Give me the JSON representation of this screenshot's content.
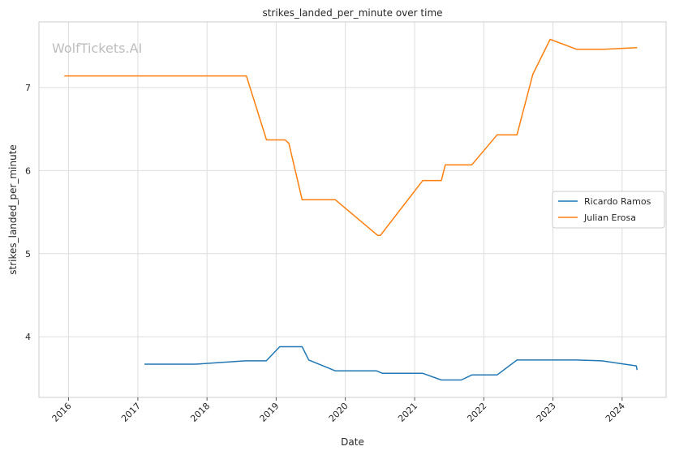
{
  "chart_data": {
    "type": "line",
    "title": "strikes_landed_per_minute over time",
    "xlabel": "Date",
    "ylabel": "strikes_landed_per_minute",
    "watermark": "WolfTickets.AI",
    "xlim": [
      "2015-07-29",
      "2024-08-20"
    ],
    "ylim": [
      3.27,
      7.79
    ],
    "x_ticks": [
      {
        "label": "2016",
        "date": "2016-01-01"
      },
      {
        "label": "2017",
        "date": "2017-01-01"
      },
      {
        "label": "2018",
        "date": "2018-01-01"
      },
      {
        "label": "2019",
        "date": "2019-01-01"
      },
      {
        "label": "2020",
        "date": "2020-01-01"
      },
      {
        "label": "2021",
        "date": "2021-01-01"
      },
      {
        "label": "2022",
        "date": "2022-01-01"
      },
      {
        "label": "2023",
        "date": "2023-01-01"
      },
      {
        "label": "2024",
        "date": "2024-01-01"
      }
    ],
    "y_ticks": [
      4,
      5,
      6,
      7
    ],
    "grid": true,
    "legend": "center-right",
    "series": [
      {
        "name": "Ricardo Ramos",
        "color": "#1f77b4",
        "points": [
          [
            "2017-02-05",
            3.67
          ],
          [
            "2017-11-02",
            3.67
          ],
          [
            "2018-07-22",
            3.71
          ],
          [
            "2018-11-10",
            3.71
          ],
          [
            "2019-01-20",
            3.88
          ],
          [
            "2019-05-18",
            3.88
          ],
          [
            "2019-06-22",
            3.72
          ],
          [
            "2019-11-09",
            3.59
          ],
          [
            "2020-06-13",
            3.59
          ],
          [
            "2020-07-15",
            3.56
          ],
          [
            "2021-02-13",
            3.56
          ],
          [
            "2021-05-22",
            3.48
          ],
          [
            "2021-09-04",
            3.48
          ],
          [
            "2021-10-30",
            3.54
          ],
          [
            "2022-03-12",
            3.54
          ],
          [
            "2022-06-25",
            3.72
          ],
          [
            "2023-05-06",
            3.72
          ],
          [
            "2023-09-16",
            3.71
          ],
          [
            "2024-03-16",
            3.65
          ],
          [
            "2024-03-20",
            3.6
          ]
        ]
      },
      {
        "name": "Julian Erosa",
        "color": "#ff7f0e",
        "points": [
          [
            "2015-12-10",
            7.14
          ],
          [
            "2018-07-28",
            7.14
          ],
          [
            "2018-11-11",
            6.37
          ],
          [
            "2019-02-17",
            6.37
          ],
          [
            "2019-03-09",
            6.33
          ],
          [
            "2019-05-18",
            5.65
          ],
          [
            "2019-11-09",
            5.65
          ],
          [
            "2020-06-20",
            5.22
          ],
          [
            "2020-07-04",
            5.22
          ],
          [
            "2021-02-13",
            5.88
          ],
          [
            "2021-05-22",
            5.88
          ],
          [
            "2021-06-12",
            6.07
          ],
          [
            "2021-10-30",
            6.07
          ],
          [
            "2022-03-12",
            6.43
          ],
          [
            "2022-06-25",
            6.43
          ],
          [
            "2022-09-17",
            7.16
          ],
          [
            "2022-12-17",
            7.58
          ],
          [
            "2023-05-06",
            7.46
          ],
          [
            "2023-09-23",
            7.46
          ],
          [
            "2024-03-20",
            7.48
          ]
        ]
      }
    ]
  }
}
